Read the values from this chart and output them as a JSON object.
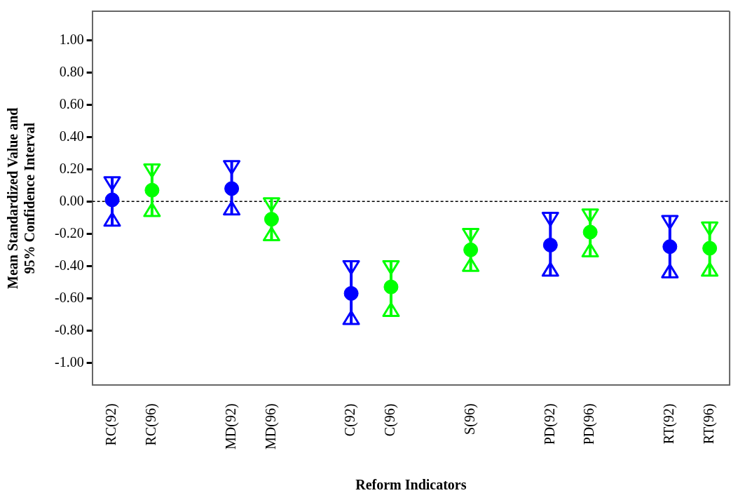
{
  "chart_data": {
    "type": "scatter",
    "xlabel": "Reform Indicators",
    "ylabel": "Mean Standardized Value and 95% Confidence Interval",
    "categories": [
      "RC(92)",
      "RC(96)",
      null,
      "MD(92)",
      "MD(96)",
      null,
      "C(92)",
      "C(96)",
      null,
      "S(96)",
      null,
      "PD(92)",
      "PD(96)",
      null,
      "RT(92)",
      "RT(96)"
    ],
    "values": [
      0.01,
      0.07,
      null,
      0.08,
      -0.11,
      null,
      -0.57,
      -0.53,
      null,
      -0.3,
      null,
      -0.27,
      -0.19,
      null,
      -0.28,
      -0.29
    ],
    "errors": [
      [
        -0.15,
        0.15
      ],
      [
        -0.09,
        0.23
      ],
      null,
      [
        -0.08,
        0.25
      ],
      [
        -0.24,
        0.02
      ],
      null,
      [
        -0.76,
        -0.37
      ],
      [
        -0.71,
        -0.37
      ],
      null,
      [
        -0.43,
        -0.17
      ],
      null,
      [
        -0.46,
        -0.07
      ],
      [
        -0.34,
        -0.05
      ],
      null,
      [
        -0.47,
        -0.09
      ],
      [
        -0.46,
        -0.13
      ]
    ],
    "colors": [
      "#0000ff",
      "#00ff00",
      null,
      "#0000ff",
      "#00ff00",
      null,
      "#0000ff",
      "#00ff00",
      null,
      "#00ff00",
      null,
      "#0000ff",
      "#00ff00",
      null,
      "#0000ff",
      "#00ff00"
    ],
    "marker": "circle",
    "ylim": [
      -1.14,
      1.18
    ],
    "yticks": [
      {
        "value": -1,
        "label": "-1.00"
      },
      {
        "value": -0.8,
        "label": "-0.80"
      },
      {
        "value": -0.6,
        "label": "-0.60"
      },
      {
        "value": -0.4,
        "label": "-0.40"
      },
      {
        "value": -0.2,
        "label": "-0.20"
      },
      {
        "value": 0,
        "label": "0.00"
      },
      {
        "value": 0.2,
        "label": "0.20"
      },
      {
        "value": 0.4,
        "label": "0.40"
      },
      {
        "value": 0.6,
        "label": "0.60"
      },
      {
        "value": 0.8,
        "label": "0.80"
      },
      {
        "value": 1,
        "label": "1.00"
      }
    ],
    "ref_lines": [
      {
        "axis": "y",
        "value": 0,
        "color": "#000000",
        "line_style": "dashed"
      }
    ],
    "grid": false,
    "legend": false
  }
}
